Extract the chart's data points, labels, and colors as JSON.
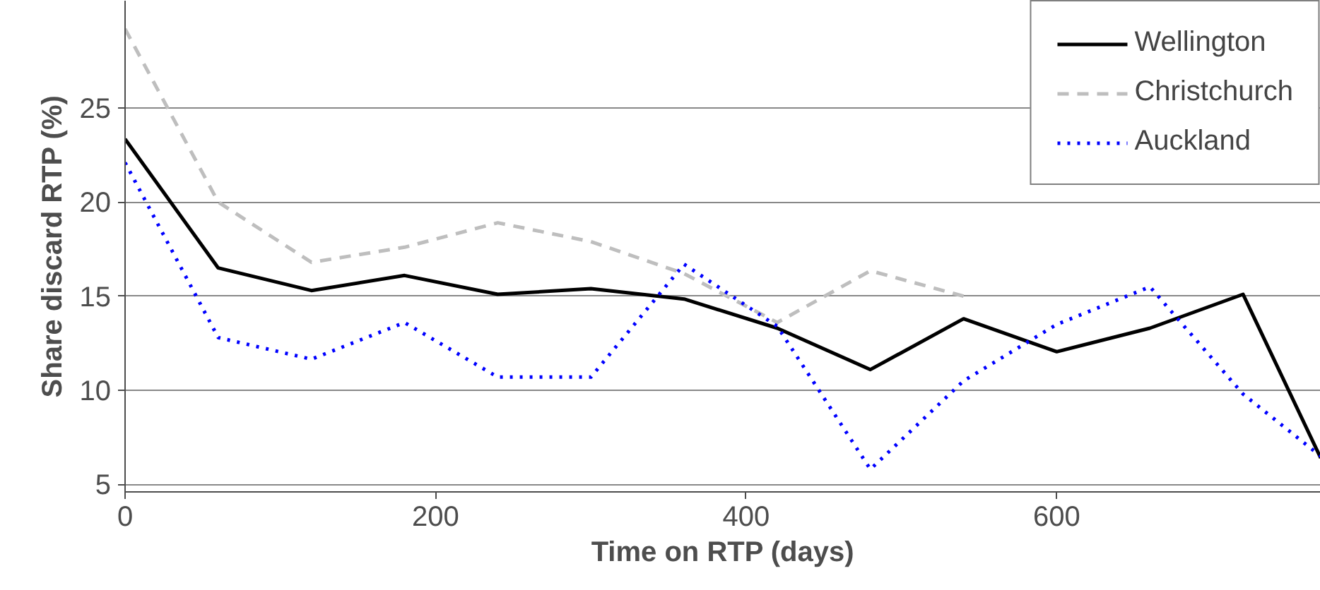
{
  "chart_data": {
    "type": "line",
    "xlabel": "Time on RTP (days)",
    "ylabel": "Share discard RTP (%)",
    "x": [
      0,
      60,
      120,
      180,
      240,
      300,
      360,
      420,
      480,
      540,
      600,
      660,
      720,
      770
    ],
    "xlim": [
      0,
      770
    ],
    "xticks": [
      0,
      200,
      400,
      600
    ],
    "ylim": [
      4.6,
      30.7
    ],
    "yticks": [
      5,
      10,
      15,
      20,
      25
    ],
    "grid": "y",
    "legend": "top right",
    "series": [
      {
        "name": "Wellington",
        "color": "#000000",
        "line_style": "solid",
        "values": [
          23.35,
          16.5,
          15.3,
          16.1,
          15.1,
          15.4,
          14.85,
          13.3,
          11.1,
          13.8,
          12.05,
          13.3,
          15.1,
          6.4
        ]
      },
      {
        "name": "Christchurch",
        "color": "#bebebe",
        "line_style": "dashed",
        "values": [
          29.2,
          20.0,
          16.8,
          17.6,
          18.9,
          17.9,
          16.2,
          13.6,
          16.35,
          15.0,
          null,
          null,
          null,
          null
        ]
      },
      {
        "name": "Auckland",
        "color": "#0000ff",
        "line_style": "dotted",
        "values": [
          22.1,
          12.8,
          11.65,
          13.6,
          10.7,
          10.7,
          16.7,
          13.4,
          5.8,
          10.5,
          13.5,
          15.5,
          9.8,
          6.5
        ]
      }
    ]
  }
}
